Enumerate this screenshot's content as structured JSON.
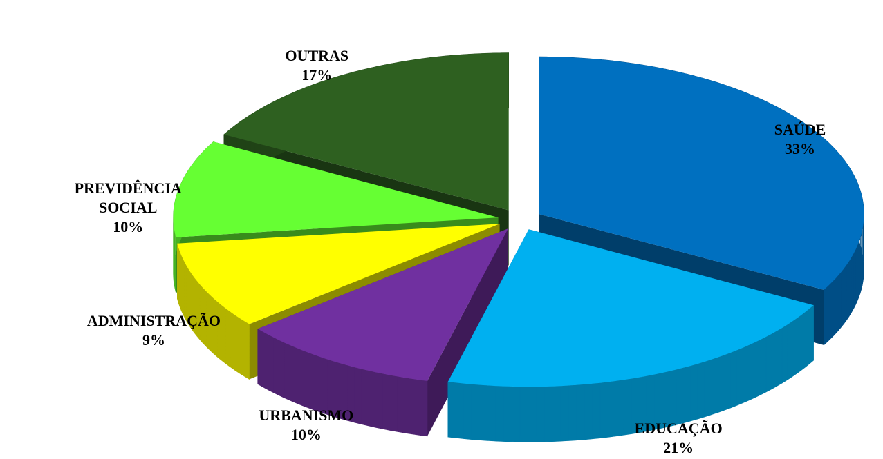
{
  "chart_data": {
    "type": "pie3d",
    "categories": [
      "SAÚDE",
      "EDUCAÇÃO",
      "URBANISMO",
      "ADMINISTRAÇÃO",
      "PREVIDÊNCIA SOCIAL",
      "OUTRAS"
    ],
    "values": [
      33,
      21,
      10,
      9,
      10,
      17
    ],
    "value_labels": [
      "33%",
      "21%",
      "10%",
      "9%",
      "10%",
      "17%"
    ],
    "colors": [
      "#0070c0",
      "#00b0f0",
      "#7030a0",
      "#ffff00",
      "#66ff33",
      "#2e6020"
    ]
  }
}
